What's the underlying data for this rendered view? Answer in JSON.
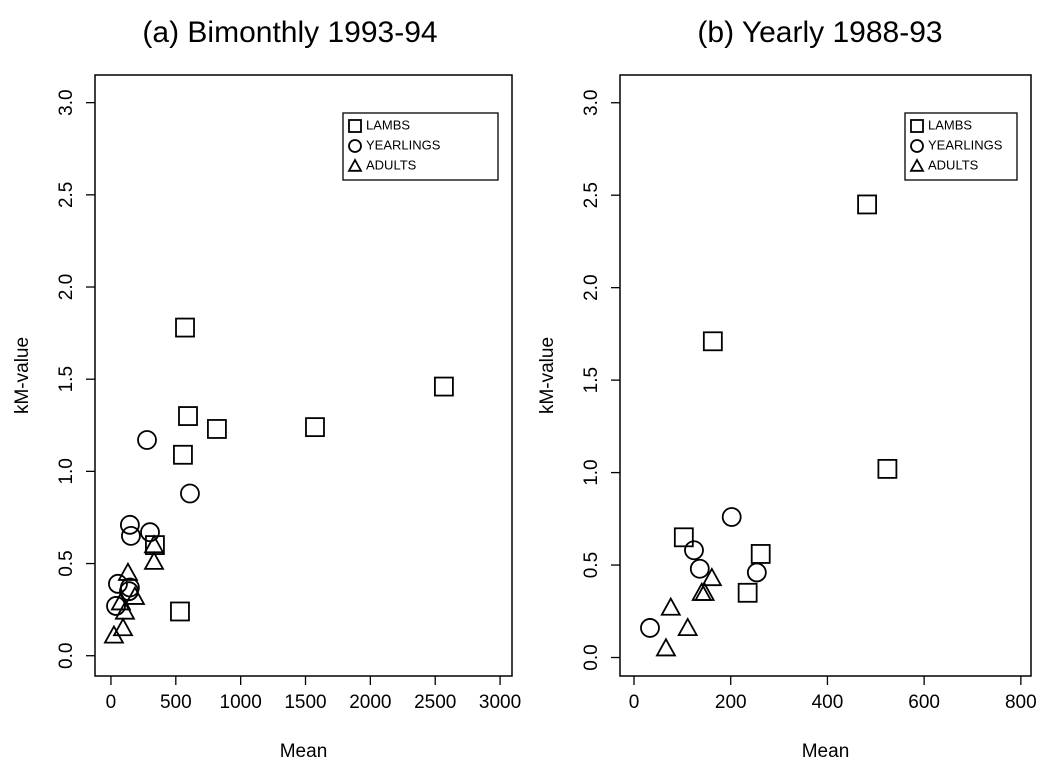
{
  "chart_data": [
    {
      "type": "scatter",
      "title": "(a) Bimonthly 1993-94",
      "x_label": "Mean",
      "y_label": "kM-value",
      "xlim": [
        -123,
        3092
      ],
      "ylim": [
        -0.11,
        3.15
      ],
      "xticks": [
        0,
        500,
        1000,
        1500,
        2000,
        2500,
        3000
      ],
      "yticks": [
        {
          "value": 0,
          "label": "0.0"
        },
        {
          "value": 0.5,
          "label": "0.5"
        },
        {
          "value": 1,
          "label": "1.0"
        },
        {
          "value": 1.5,
          "label": "1.5"
        },
        {
          "value": 2,
          "label": "2.0"
        },
        {
          "value": 2.5,
          "label": "2.5"
        },
        {
          "value": 3,
          "label": "3.0"
        }
      ],
      "grid": false,
      "legend": "upper right",
      "series": [
        {
          "name": "LAMBS",
          "marker": "square",
          "color": "#000000",
          "x": [
            571,
            594,
            817,
            1573,
            2567,
            555,
            532,
            339
          ],
          "values": [
            1.78,
            1.3,
            1.23,
            1.24,
            1.46,
            1.09,
            0.24,
            0.6
          ]
        },
        {
          "name": "YEARLINGS",
          "marker": "circle",
          "color": "#000000",
          "x": [
            278,
            609,
            146,
            154,
            301,
            54,
            146,
            139,
            39
          ],
          "values": [
            1.17,
            0.88,
            0.71,
            0.65,
            0.67,
            0.39,
            0.37,
            0.35,
            0.27
          ]
        },
        {
          "name": "ADULTS",
          "marker": "triangle",
          "color": "#000000",
          "x": [
            332,
            332,
            131,
            185,
            77,
            108,
            93,
            23
          ],
          "values": [
            0.6,
            0.51,
            0.45,
            0.32,
            0.29,
            0.24,
            0.15,
            0.11
          ]
        }
      ]
    },
    {
      "type": "scatter",
      "title": "(b) Yearly 1988-93",
      "x_label": "Mean",
      "y_label": "kM-value",
      "xlim": [
        -29,
        821
      ],
      "ylim": [
        -0.1,
        3.15
      ],
      "xticks": [
        0,
        200,
        400,
        600,
        800
      ],
      "yticks": [
        {
          "value": 0,
          "label": "0.0"
        },
        {
          "value": 0.5,
          "label": "0.5"
        },
        {
          "value": 1,
          "label": "1.0"
        },
        {
          "value": 1.5,
          "label": "1.5"
        },
        {
          "value": 2,
          "label": "2.0"
        },
        {
          "value": 2.5,
          "label": "2.5"
        },
        {
          "value": 3,
          "label": "3.0"
        }
      ],
      "grid": false,
      "legend": "upper right",
      "series": [
        {
          "name": "LAMBS",
          "marker": "square",
          "color": "#000000",
          "x": [
            482,
            163,
            524,
            103,
            262,
            235
          ],
          "values": [
            2.45,
            1.71,
            1.02,
            0.65,
            0.56,
            0.35
          ]
        },
        {
          "name": "YEARLINGS",
          "marker": "circle",
          "color": "#000000",
          "x": [
            202,
            124,
            136,
            254,
            33
          ],
          "values": [
            0.76,
            0.58,
            0.48,
            0.46,
            0.16
          ]
        },
        {
          "name": "ADULTS",
          "marker": "triangle",
          "color": "#000000",
          "x": [
            161,
            140,
            146,
            76,
            111,
            66
          ],
          "values": [
            0.43,
            0.35,
            0.35,
            0.27,
            0.16,
            0.05
          ]
        }
      ]
    }
  ]
}
